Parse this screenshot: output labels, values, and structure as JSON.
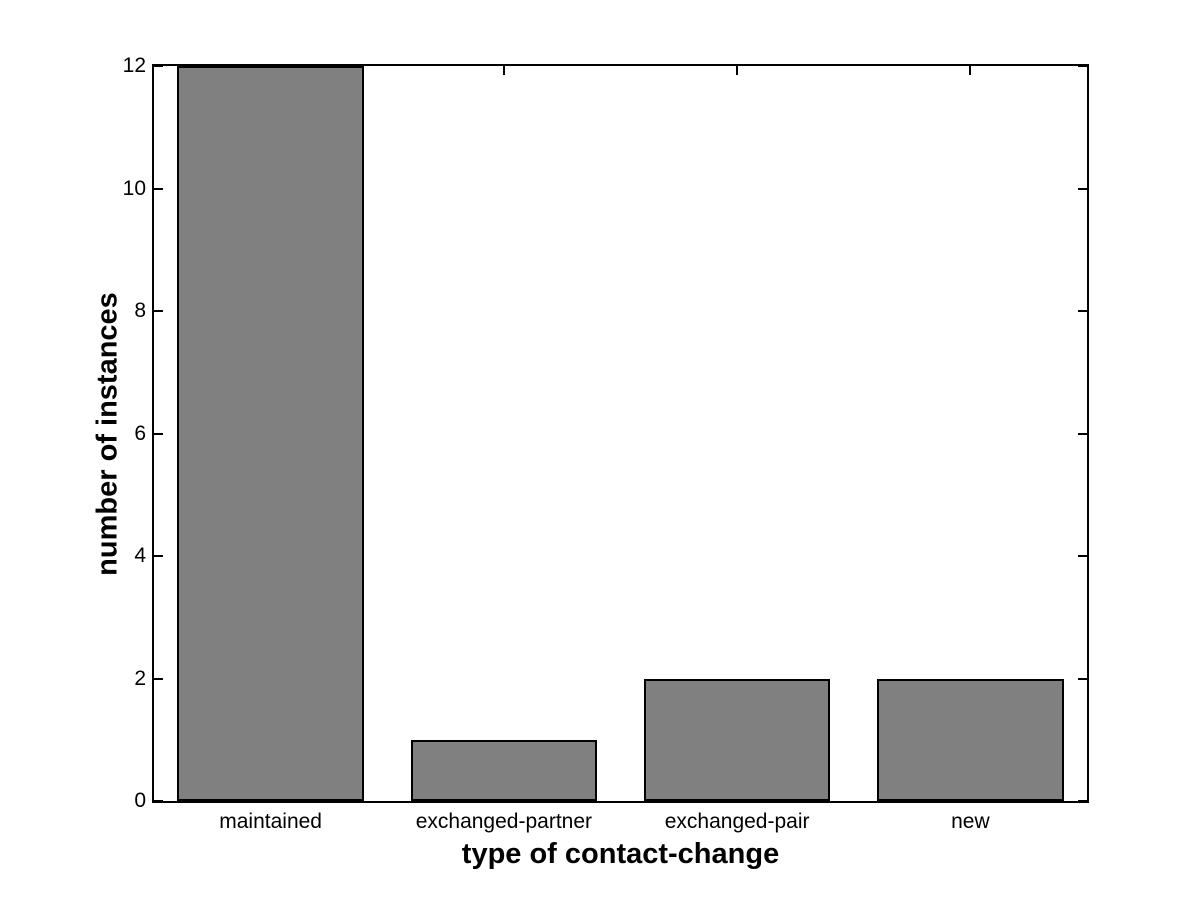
{
  "chart_data": {
    "type": "bar",
    "title": "",
    "categories": [
      "maintained",
      "exchanged-partner",
      "exchanged-pair",
      "new"
    ],
    "values": [
      12,
      1,
      2,
      2
    ],
    "xlabel": "type of contact-change",
    "ylabel": "number of instances",
    "ylim": [
      0,
      12
    ],
    "yticks": [
      0,
      2,
      4,
      6,
      8,
      10,
      12
    ],
    "bar_width_fraction": 0.8,
    "grid": false,
    "colors": {
      "bar_fill": "#808080",
      "bar_edge": "#000000",
      "axis": "#000000",
      "text": "#000000",
      "background": "#ffffff"
    }
  }
}
